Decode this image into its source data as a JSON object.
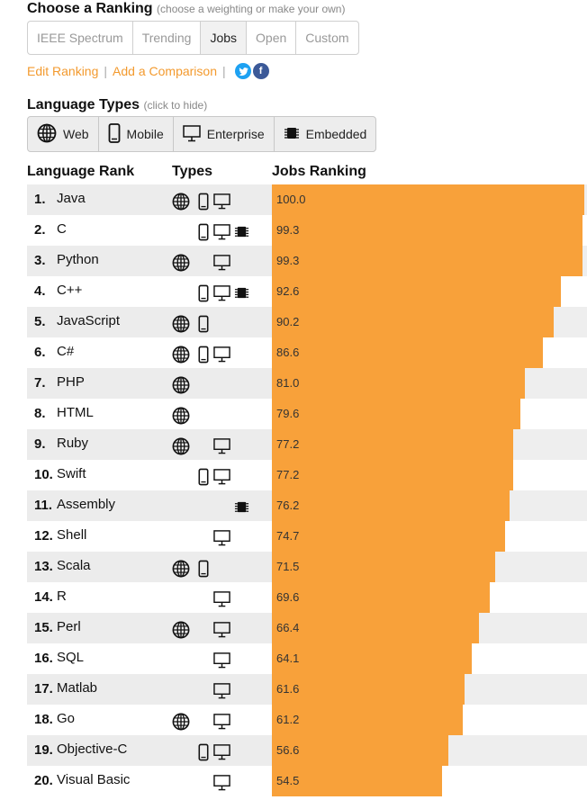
{
  "ranking": {
    "title": "Choose a Ranking",
    "hint": "(choose a weighting or make your own)",
    "options": [
      "IEEE Spectrum",
      "Trending",
      "Jobs",
      "Open",
      "Custom"
    ],
    "active": "Jobs"
  },
  "links": {
    "edit": "Edit Ranking",
    "compare": "Add a Comparison",
    "separator": "|"
  },
  "types": {
    "title": "Language Types",
    "hint": "(click to hide)",
    "items": [
      {
        "label": "Web",
        "icon": "globe-icon"
      },
      {
        "label": "Mobile",
        "icon": "mobile-icon"
      },
      {
        "label": "Enterprise",
        "icon": "monitor-icon"
      },
      {
        "label": "Embedded",
        "icon": "chip-icon"
      }
    ]
  },
  "table": {
    "col_rank": "Language Rank",
    "col_types": "Types",
    "col_ranking": "Jobs Ranking",
    "bar_color": "#f8a13a",
    "rows": [
      {
        "rank": "1.",
        "name": "Java",
        "types": [
          "web",
          "mobile",
          "enterprise"
        ],
        "score": 100.0,
        "score_label": "100.0"
      },
      {
        "rank": "2.",
        "name": "C",
        "types": [
          "mobile",
          "enterprise",
          "embedded"
        ],
        "score": 99.3,
        "score_label": "99.3"
      },
      {
        "rank": "3.",
        "name": "Python",
        "types": [
          "web",
          "enterprise"
        ],
        "score": 99.3,
        "score_label": "99.3"
      },
      {
        "rank": "4.",
        "name": "C++",
        "types": [
          "mobile",
          "enterprise",
          "embedded"
        ],
        "score": 92.6,
        "score_label": "92.6"
      },
      {
        "rank": "5.",
        "name": "JavaScript",
        "types": [
          "web",
          "mobile"
        ],
        "score": 90.2,
        "score_label": "90.2"
      },
      {
        "rank": "6.",
        "name": "C#",
        "types": [
          "web",
          "mobile",
          "enterprise"
        ],
        "score": 86.6,
        "score_label": "86.6"
      },
      {
        "rank": "7.",
        "name": "PHP",
        "types": [
          "web"
        ],
        "score": 81.0,
        "score_label": "81.0"
      },
      {
        "rank": "8.",
        "name": "HTML",
        "types": [
          "web"
        ],
        "score": 79.6,
        "score_label": "79.6"
      },
      {
        "rank": "9.",
        "name": "Ruby",
        "types": [
          "web",
          "enterprise"
        ],
        "score": 77.2,
        "score_label": "77.2"
      },
      {
        "rank": "10.",
        "name": "Swift",
        "types": [
          "mobile",
          "enterprise"
        ],
        "score": 77.2,
        "score_label": "77.2"
      },
      {
        "rank": "11.",
        "name": "Assembly",
        "types": [
          "embedded"
        ],
        "score": 76.2,
        "score_label": "76.2"
      },
      {
        "rank": "12.",
        "name": "Shell",
        "types": [
          "enterprise"
        ],
        "score": 74.7,
        "score_label": "74.7"
      },
      {
        "rank": "13.",
        "name": "Scala",
        "types": [
          "web",
          "mobile"
        ],
        "score": 71.5,
        "score_label": "71.5"
      },
      {
        "rank": "14.",
        "name": "R",
        "types": [
          "enterprise"
        ],
        "score": 69.6,
        "score_label": "69.6"
      },
      {
        "rank": "15.",
        "name": "Perl",
        "types": [
          "web",
          "enterprise"
        ],
        "score": 66.4,
        "score_label": "66.4"
      },
      {
        "rank": "16.",
        "name": "SQL",
        "types": [
          "enterprise"
        ],
        "score": 64.1,
        "score_label": "64.1"
      },
      {
        "rank": "17.",
        "name": "Matlab",
        "types": [
          "enterprise"
        ],
        "score": 61.6,
        "score_label": "61.6"
      },
      {
        "rank": "18.",
        "name": "Go",
        "types": [
          "web",
          "enterprise"
        ],
        "score": 61.2,
        "score_label": "61.2"
      },
      {
        "rank": "19.",
        "name": "Objective-C",
        "types": [
          "mobile",
          "enterprise"
        ],
        "score": 56.6,
        "score_label": "56.6"
      },
      {
        "rank": "20.",
        "name": "Visual Basic",
        "types": [
          "enterprise"
        ],
        "score": 54.5,
        "score_label": "54.5"
      }
    ]
  }
}
